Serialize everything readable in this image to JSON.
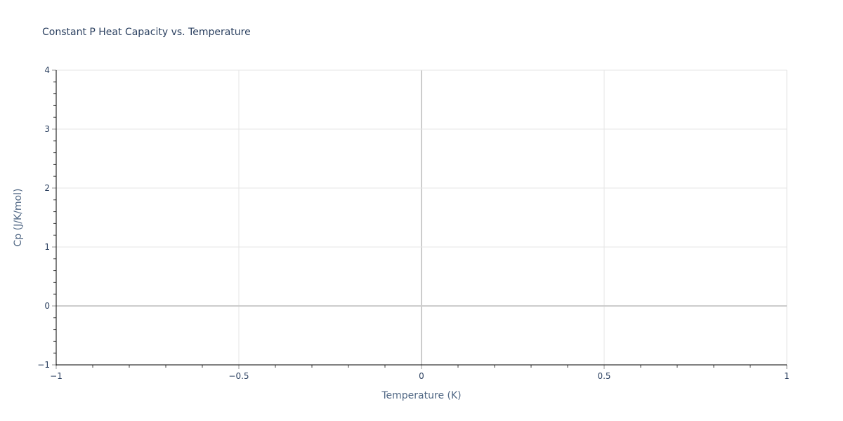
{
  "chart_data": {
    "type": "scatter",
    "title": "Constant P Heat Capacity vs. Temperature",
    "xlabel": "Temperature (K)",
    "ylabel": "Cp (J/K/mol)",
    "xlim": [
      -1,
      1
    ],
    "ylim": [
      -1,
      4
    ],
    "x_ticks": [
      -1,
      -0.5,
      0,
      0.5,
      1
    ],
    "x_tick_labels": [
      "−1",
      "−0.5",
      "0",
      "0.5",
      "1"
    ],
    "y_ticks": [
      -1,
      0,
      1,
      2,
      3,
      4
    ],
    "y_tick_labels": [
      "−1",
      "0",
      "1",
      "2",
      "3",
      "4"
    ],
    "x_minor_step": 0.1,
    "y_minor_step": 0.2,
    "grid": true,
    "series": [],
    "colors": {
      "grid": "#e5e5e5",
      "zeroline": "#cccccc",
      "text": "#2a3f5f",
      "axis": "#000000"
    }
  }
}
